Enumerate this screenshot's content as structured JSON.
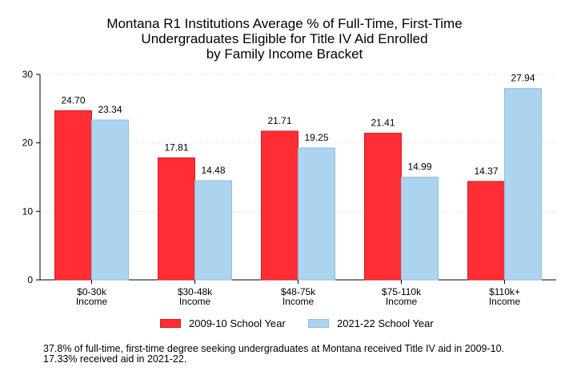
{
  "chart_data": {
    "type": "bar",
    "title_lines": [
      "Montana R1 Institutions Average % of Full-Time, First-Time",
      "Undergraduates Eligible for Title IV Aid Enrolled",
      "by Family Income Bracket"
    ],
    "categories": [
      [
        "$0-30k",
        "Income"
      ],
      [
        "$30-48k",
        "Income"
      ],
      [
        "$48-75k",
        "Income"
      ],
      [
        "$75-110k",
        "Income"
      ],
      [
        "$110k+",
        "Income"
      ]
    ],
    "series": [
      {
        "name": "2009-10 School Year",
        "values": [
          24.7,
          17.81,
          21.71,
          21.41,
          14.37
        ],
        "color": "#ff2e34",
        "stroke": "#c81e24"
      },
      {
        "name": "2021-22 School Year",
        "values": [
          23.34,
          14.48,
          19.25,
          14.99,
          27.94
        ],
        "color": "#acd4ef",
        "stroke": "#8fbce0"
      }
    ],
    "value_labels": [
      [
        "24.70",
        "17.81",
        "21.71",
        "21.41",
        "14.37"
      ],
      [
        "23.34",
        "14.48",
        "19.25",
        "14.99",
        "27.94"
      ]
    ],
    "yticks": [
      0,
      10,
      20,
      30
    ],
    "ylim": [
      0,
      30
    ],
    "grid": "horizontal-dotted",
    "legend_position": "bottom",
    "xlabel": "",
    "ylabel": ""
  },
  "note": "37.8% of full-time, first-time degree seeking undergraduates at Montana received Title IV aid in 2009-10. 17.33% received aid in 2021-22."
}
